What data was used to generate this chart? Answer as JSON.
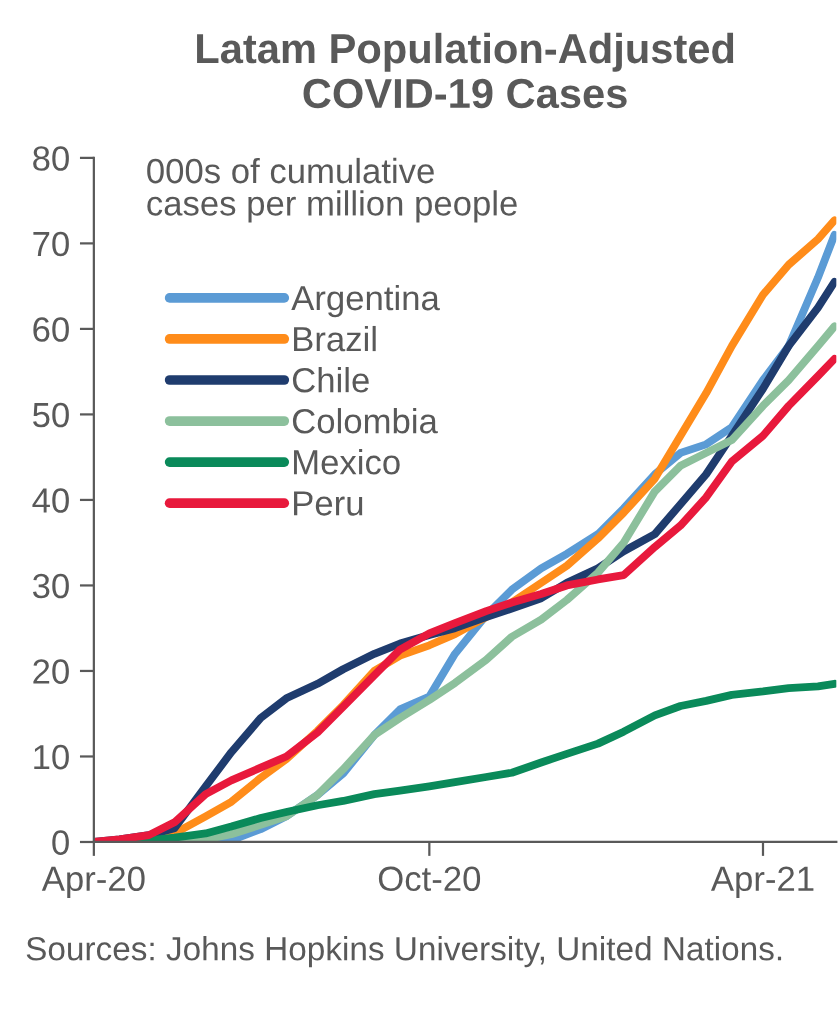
{
  "chart_data": {
    "type": "line",
    "title": "Latam Population-Adjusted\nCOVID-19 Cases",
    "ylabel": "000s of cumulative\ncases per million people",
    "x": [
      "2020-04-01",
      "2020-04-15",
      "2020-05-01",
      "2020-05-15",
      "2020-06-01",
      "2020-06-15",
      "2020-07-01",
      "2020-07-15",
      "2020-08-01",
      "2020-08-15",
      "2020-09-01",
      "2020-09-15",
      "2020-10-01",
      "2020-10-15",
      "2020-11-01",
      "2020-11-15",
      "2020-12-01",
      "2020-12-15",
      "2021-01-01",
      "2021-01-15",
      "2021-02-01",
      "2021-02-15",
      "2021-03-01",
      "2021-03-15",
      "2021-04-01",
      "2021-04-15",
      "2021-05-01",
      "2021-05-10"
    ],
    "series": [
      {
        "name": "Argentina",
        "color": "#5b9bd5",
        "values": [
          null,
          null,
          null,
          0,
          0,
          0.2,
          1.5,
          3,
          5.5,
          8,
          12.5,
          15.5,
          17,
          22,
          26.5,
          29.5,
          32,
          33.7,
          36,
          39,
          43,
          45.5,
          46.5,
          48.5,
          54,
          58,
          66,
          71
        ]
      },
      {
        "name": "Brazil",
        "color": "#ff8c1a",
        "values": [
          null,
          null,
          0.4,
          1,
          3,
          4.7,
          7.5,
          9.7,
          13,
          16,
          20,
          21.8,
          23,
          24.3,
          26.3,
          28,
          30.3,
          32.3,
          35.5,
          38.5,
          42.5,
          47.5,
          52.5,
          58,
          64,
          67.5,
          70.5,
          72.7
        ]
      },
      {
        "name": "Chile",
        "color": "#1f3c6e",
        "values": [
          0,
          0.3,
          0.8,
          1.6,
          6.5,
          10.5,
          14.5,
          16.8,
          18.5,
          20.2,
          22,
          23.2,
          24.2,
          25,
          26.3,
          27.3,
          28.5,
          30.3,
          32,
          34,
          36,
          39.5,
          43,
          47.5,
          53,
          58,
          62.5,
          65.5
        ]
      },
      {
        "name": "Colombia",
        "color": "#8cc09c",
        "values": [
          0,
          0,
          0,
          0,
          0.3,
          0.9,
          2,
          3,
          5.5,
          8.5,
          12.5,
          14.5,
          16.6,
          18.6,
          21.3,
          24,
          26,
          28.3,
          31.5,
          35,
          41,
          44,
          45.5,
          47,
          51,
          54,
          58,
          60.3
        ]
      },
      {
        "name": "Mexico",
        "color": "#0a8a5a",
        "values": [
          0,
          0,
          0.2,
          0.5,
          1,
          1.8,
          2.8,
          3.5,
          4.3,
          4.8,
          5.6,
          6,
          6.5,
          7,
          7.6,
          8.1,
          9.3,
          10.3,
          11.5,
          12.9,
          14.8,
          15.9,
          16.5,
          17.2,
          17.6,
          18,
          18.2,
          18.5
        ]
      },
      {
        "name": "Peru",
        "color": "#e8193c",
        "values": [
          0,
          0.3,
          0.8,
          2.3,
          5.6,
          7.2,
          8.7,
          10,
          12.8,
          15.8,
          19.5,
          22.5,
          24.4,
          25.6,
          27,
          28,
          29,
          30,
          30.7,
          31.2,
          34.5,
          37,
          40.3,
          44.5,
          47.5,
          51,
          54.5,
          56.5
        ]
      }
    ],
    "xlim": [
      "2020-04-01",
      "2021-05-11"
    ],
    "xticks": [
      {
        "value": "2020-04-01",
        "label": "Apr-20"
      },
      {
        "value": "2020-10-01",
        "label": "Oct-20"
      },
      {
        "value": "2021-04-01",
        "label": "Apr-21"
      }
    ],
    "ylim": [
      0,
      80
    ],
    "yticks": [
      0,
      10,
      20,
      30,
      40,
      50,
      60,
      70,
      80
    ],
    "grid": false,
    "legend": "top left",
    "marker": "none",
    "line_style": "solid",
    "annotations": [
      "Sources: Johns Hopkins University, United Nations."
    ]
  }
}
